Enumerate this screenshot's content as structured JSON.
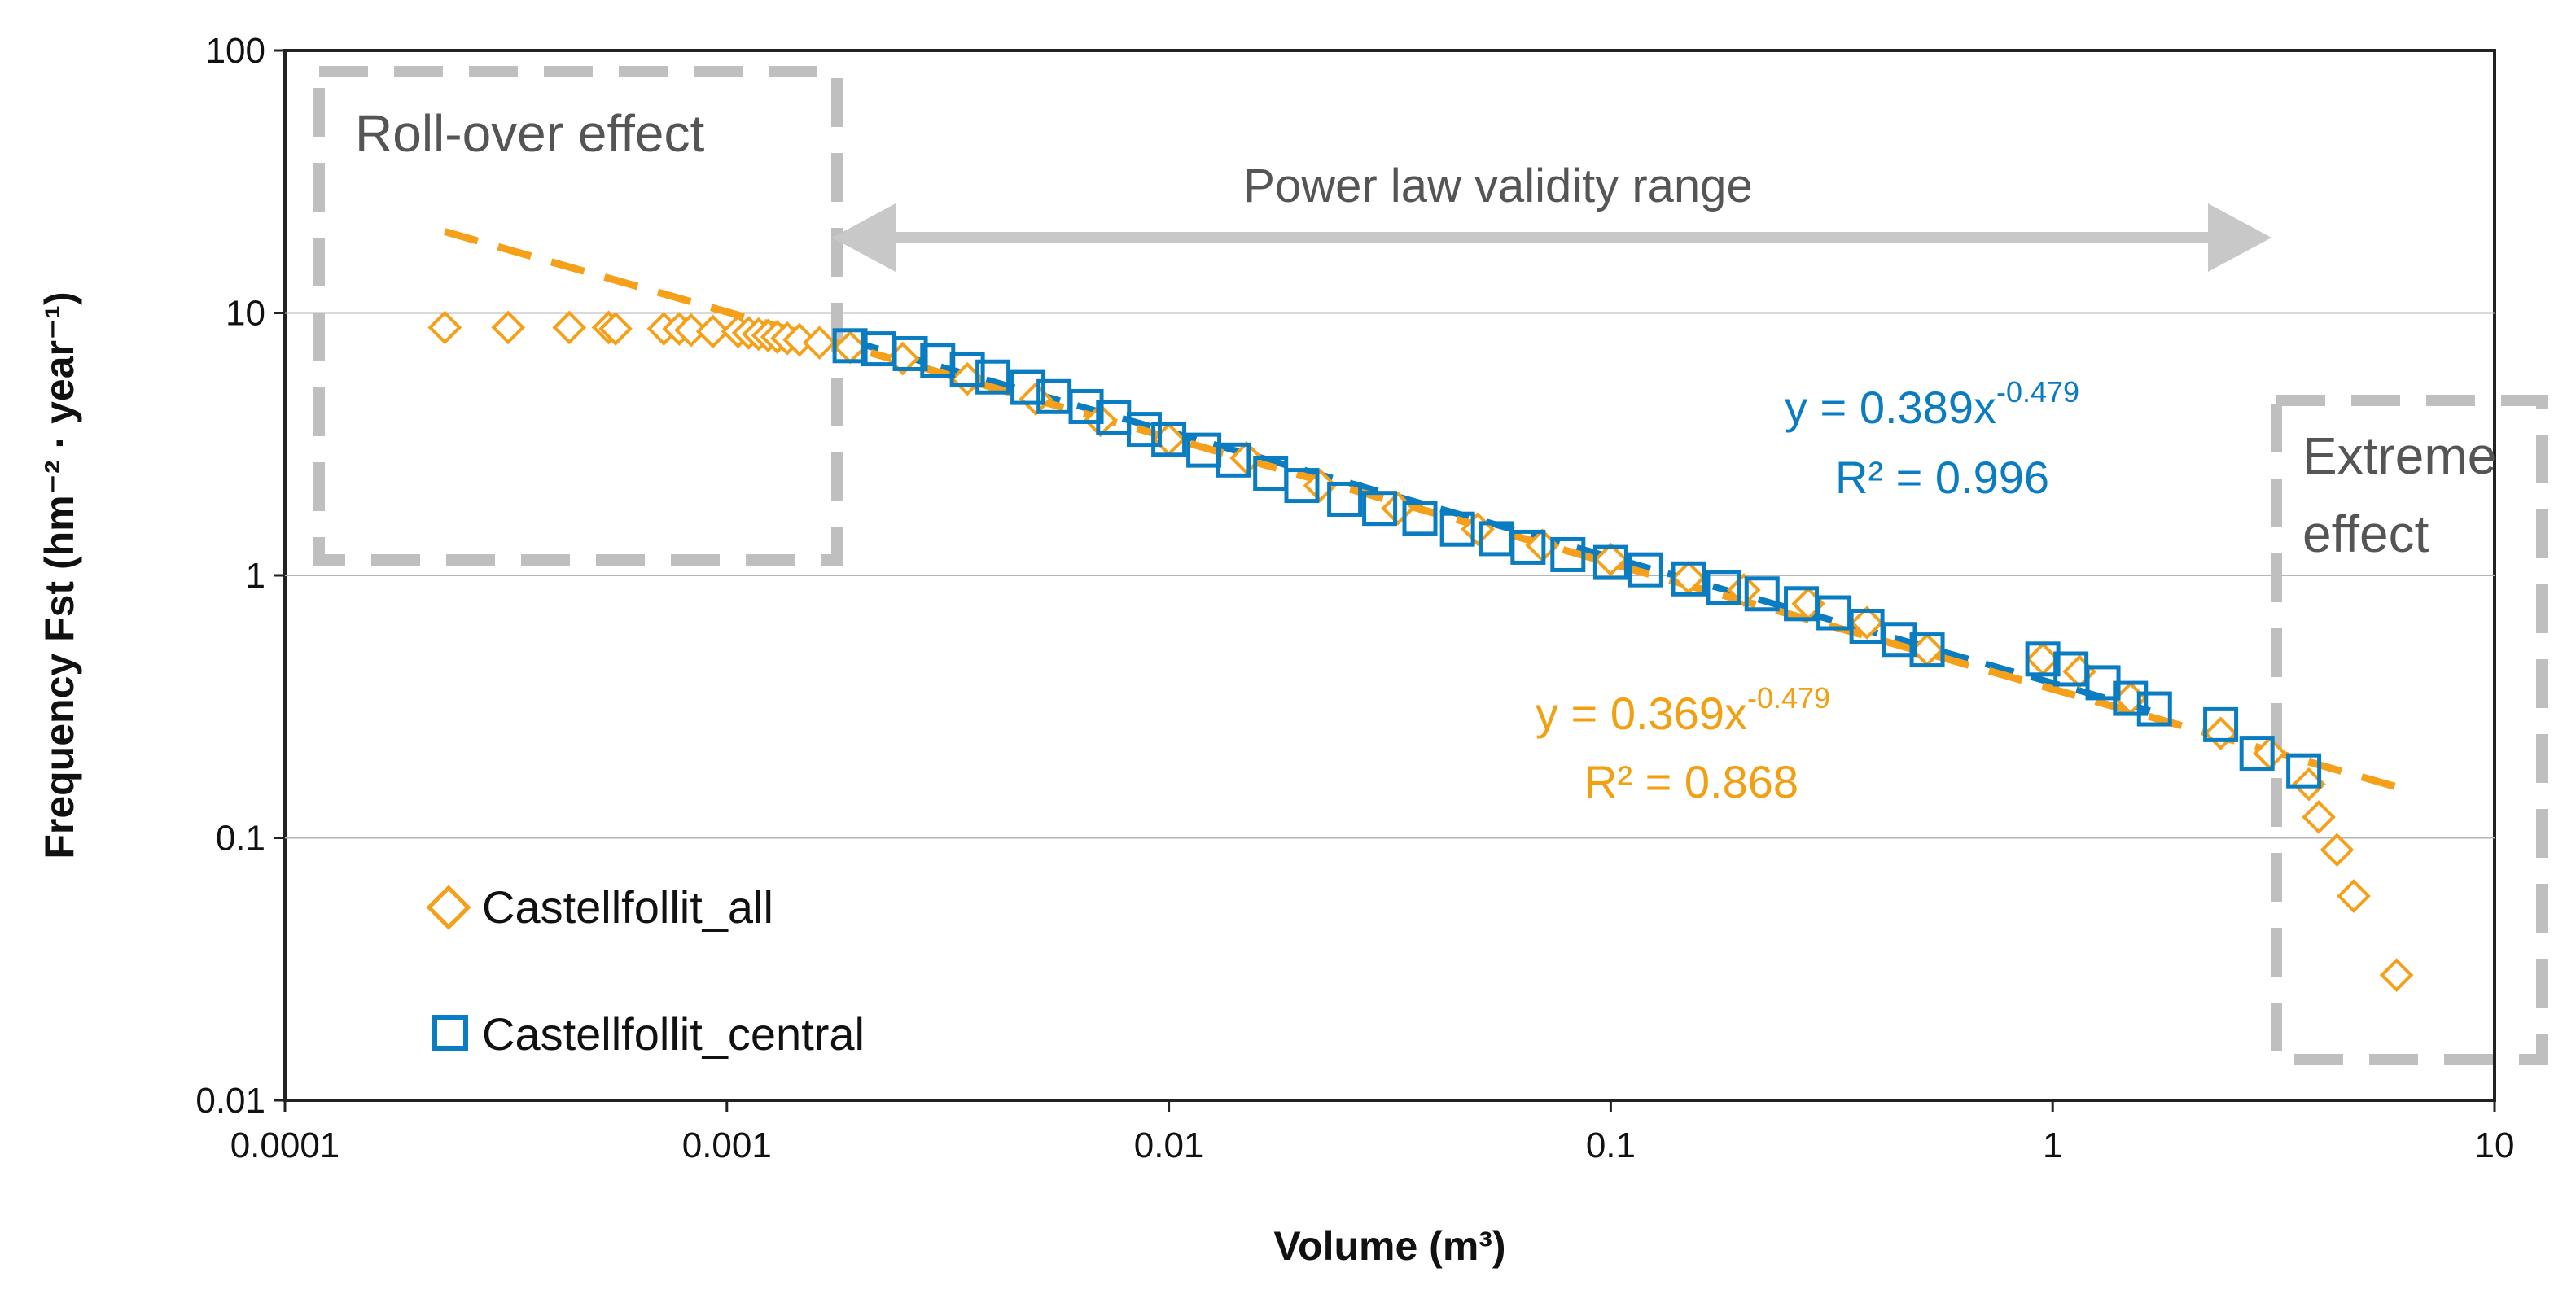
{
  "colors": {
    "orange": "#F6A019",
    "blue": "#0A7CC2",
    "gray_box": "#BFBFBF",
    "grid": "#B5B5B5",
    "annotation_text": "#595959"
  },
  "chart_data": {
    "type": "scatter",
    "title": "",
    "xlabel": "Volume (m³)",
    "ylabel": "Frequency Fst (hm⁻² · year⁻¹)",
    "x_scale": "log",
    "y_scale": "log",
    "xlim": [
      0.0001,
      10
    ],
    "ylim": [
      0.01,
      100
    ],
    "x_ticks": [
      "0.0001",
      "0.001",
      "0.01",
      "0.1",
      "1",
      "10"
    ],
    "y_ticks": [
      "100",
      "10",
      "1",
      "0.1",
      "0.01"
    ],
    "grid": "horizontal",
    "legend_position": "bottom-left",
    "series": [
      {
        "name": "Castellfollit_all",
        "marker": "diamond",
        "color": "#F6A019",
        "x": [
          0.00023,
          0.00032,
          0.00044,
          0.00054,
          0.00056,
          0.00072,
          0.00078,
          0.00083,
          0.00093,
          0.00106,
          0.00112,
          0.00118,
          0.00124,
          0.0013,
          0.00137,
          0.00146,
          0.00162,
          0.0019,
          0.0025,
          0.0035,
          0.005,
          0.007,
          0.01,
          0.015,
          0.022,
          0.033,
          0.05,
          0.07,
          0.1,
          0.15,
          0.2,
          0.28,
          0.38,
          0.52,
          0.95,
          1.15,
          1.5,
          2.4,
          3.1,
          3.8,
          4.0,
          4.4,
          4.8,
          6.0
        ],
        "y": [
          8.8,
          8.8,
          8.8,
          8.8,
          8.7,
          8.7,
          8.7,
          8.6,
          8.5,
          8.5,
          8.4,
          8.3,
          8.2,
          8.1,
          8.0,
          7.9,
          7.7,
          7.4,
          6.7,
          5.6,
          4.7,
          3.9,
          3.3,
          2.8,
          2.2,
          1.8,
          1.5,
          1.3,
          1.15,
          0.98,
          0.88,
          0.78,
          0.66,
          0.52,
          0.48,
          0.43,
          0.34,
          0.25,
          0.21,
          0.16,
          0.12,
          0.09,
          0.06,
          0.03
        ]
      },
      {
        "name": "Castellfollit_central",
        "marker": "square",
        "color": "#0A7CC2",
        "x": [
          0.0019,
          0.0022,
          0.0026,
          0.003,
          0.0035,
          0.004,
          0.0048,
          0.0055,
          0.0065,
          0.0075,
          0.0088,
          0.01,
          0.012,
          0.014,
          0.017,
          0.02,
          0.025,
          0.03,
          0.037,
          0.045,
          0.055,
          0.065,
          0.08,
          0.1,
          0.12,
          0.15,
          0.18,
          0.22,
          0.27,
          0.32,
          0.38,
          0.45,
          0.52,
          0.95,
          1.1,
          1.3,
          1.5,
          1.7,
          2.4,
          2.9,
          3.7
        ],
        "y": [
          7.5,
          7.3,
          7.0,
          6.6,
          6.1,
          5.7,
          5.2,
          4.8,
          4.4,
          4.0,
          3.6,
          3.3,
          3.0,
          2.75,
          2.45,
          2.2,
          1.95,
          1.8,
          1.65,
          1.5,
          1.38,
          1.28,
          1.2,
          1.12,
          1.05,
          0.97,
          0.9,
          0.85,
          0.78,
          0.72,
          0.64,
          0.57,
          0.52,
          0.48,
          0.44,
          0.39,
          0.34,
          0.31,
          0.27,
          0.21,
          0.18
        ]
      }
    ],
    "fits": [
      {
        "series": "Castellfollit_central",
        "a": 0.389,
        "b": -0.479,
        "x_range": [
          0.0019,
          1.7
        ],
        "color": "#0A7CC2",
        "style": "dashed"
      },
      {
        "series": "Castellfollit_all",
        "a": 0.369,
        "b": -0.479,
        "x_range": [
          0.00023,
          6.0
        ],
        "color": "#F6A019",
        "style": "dashed"
      }
    ],
    "annotations": {
      "rollover": "Roll-over effect",
      "validity": "Power law validity range",
      "extreme_line1": "Extreme",
      "extreme_line2": "effect",
      "eq_central_main": "y = 0.389x",
      "eq_central_exp": "-0.479",
      "r2_central": "R² = 0.996",
      "eq_all_main": "y = 0.369x",
      "eq_all_exp": "-0.479",
      "r2_all": "R² = 0.868"
    }
  }
}
